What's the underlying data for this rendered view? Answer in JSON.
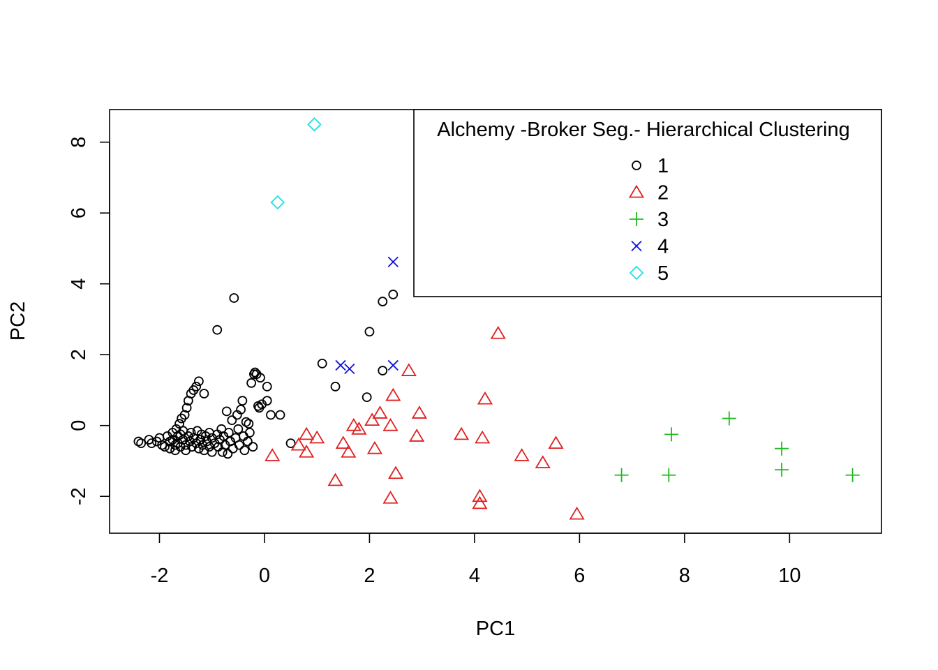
{
  "chart_data": {
    "type": "scatter",
    "xlabel": "PC1",
    "ylabel": "PC2",
    "xlim": [
      -2.95,
      11.75
    ],
    "ylim": [
      -3.04,
      8.92
    ],
    "xticks": [
      -2,
      0,
      2,
      4,
      6,
      8,
      10
    ],
    "yticks": [
      -2,
      0,
      2,
      4,
      6,
      8
    ],
    "xtick_labels": [
      "-2",
      "0",
      "2",
      "4",
      "6",
      "8",
      "10"
    ],
    "ytick_labels": [
      "-2",
      "0",
      "2",
      "4",
      "6",
      "8"
    ],
    "grid": false,
    "legend": {
      "title": "Alchemy -Broker Seg.- Hierarchical Clustering",
      "placement": "top-right"
    },
    "series": [
      {
        "name": "1",
        "marker": "circle",
        "color": "#000000",
        "points": [
          [
            -2.4,
            -0.45
          ],
          [
            -2.35,
            -0.5
          ],
          [
            -2.2,
            -0.4
          ],
          [
            -2.15,
            -0.5
          ],
          [
            -2.05,
            -0.45
          ],
          [
            -2.0,
            -0.35
          ],
          [
            -1.95,
            -0.55
          ],
          [
            -1.9,
            -0.6
          ],
          [
            -1.85,
            -0.3
          ],
          [
            -1.8,
            -0.45
          ],
          [
            -1.8,
            -0.65
          ],
          [
            -1.75,
            -0.2
          ],
          [
            -1.75,
            -0.4
          ],
          [
            -1.7,
            -0.55
          ],
          [
            -1.7,
            -0.7
          ],
          [
            -1.68,
            -0.1
          ],
          [
            -1.65,
            -0.3
          ],
          [
            -1.65,
            -0.5
          ],
          [
            -1.62,
            0.05
          ],
          [
            -1.6,
            -0.25
          ],
          [
            -1.6,
            -0.6
          ],
          [
            -1.58,
            0.2
          ],
          [
            -1.55,
            -0.4
          ],
          [
            -1.55,
            -0.15
          ],
          [
            -1.52,
            0.3
          ],
          [
            -1.5,
            -0.55
          ],
          [
            -1.5,
            -0.7
          ],
          [
            -1.48,
            0.5
          ],
          [
            -1.45,
            -0.3
          ],
          [
            -1.45,
            0.7
          ],
          [
            -1.42,
            -0.45
          ],
          [
            -1.4,
            0.9
          ],
          [
            -1.4,
            -0.2
          ],
          [
            -1.38,
            -0.6
          ],
          [
            -1.35,
            1.0
          ],
          [
            -1.35,
            -0.35
          ],
          [
            -1.3,
            -0.5
          ],
          [
            -1.3,
            1.1
          ],
          [
            -1.28,
            -0.15
          ],
          [
            -1.25,
            -0.65
          ],
          [
            -1.25,
            1.25
          ],
          [
            -1.22,
            -0.4
          ],
          [
            -1.2,
            -0.25
          ],
          [
            -1.18,
            -0.55
          ],
          [
            -1.15,
            -0.7
          ],
          [
            -1.15,
            0.9
          ],
          [
            -1.12,
            -0.3
          ],
          [
            -1.1,
            -0.45
          ],
          [
            -1.05,
            -0.6
          ],
          [
            -1.05,
            -0.2
          ],
          [
            -1.0,
            -0.75
          ],
          [
            -1.0,
            -0.35
          ],
          [
            -0.95,
            -0.5
          ],
          [
            -0.9,
            -0.25
          ],
          [
            -0.9,
            2.7
          ],
          [
            -0.88,
            -0.6
          ],
          [
            -0.85,
            -0.4
          ],
          [
            -0.82,
            -0.1
          ],
          [
            -0.8,
            -0.75
          ],
          [
            -0.78,
            -0.3
          ],
          [
            -0.75,
            -0.55
          ],
          [
            -0.72,
            0.4
          ],
          [
            -0.7,
            -0.8
          ],
          [
            -0.68,
            -0.2
          ],
          [
            -0.65,
            -0.45
          ],
          [
            -0.62,
            0.15
          ],
          [
            -0.6,
            -0.65
          ],
          [
            -0.58,
            3.6
          ],
          [
            -0.55,
            -0.35
          ],
          [
            -0.52,
            0.3
          ],
          [
            -0.5,
            -0.1
          ],
          [
            -0.48,
            -0.55
          ],
          [
            -0.45,
            0.45
          ],
          [
            -0.42,
            0.7
          ],
          [
            -0.4,
            -0.3
          ],
          [
            -0.38,
            -0.7
          ],
          [
            -0.35,
            0.1
          ],
          [
            -0.32,
            -0.45
          ],
          [
            -0.3,
            0.05
          ],
          [
            -0.28,
            -0.2
          ],
          [
            -0.25,
            1.2
          ],
          [
            -0.22,
            -0.6
          ],
          [
            -0.2,
            1.45
          ],
          [
            -0.18,
            1.5
          ],
          [
            -0.15,
            1.45
          ],
          [
            -0.12,
            0.55
          ],
          [
            -0.1,
            0.5
          ],
          [
            -0.08,
            1.35
          ],
          [
            -0.05,
            0.6
          ],
          [
            0.05,
            0.7
          ],
          [
            0.05,
            1.1
          ],
          [
            0.12,
            0.3
          ],
          [
            0.3,
            0.3
          ],
          [
            0.5,
            -0.5
          ],
          [
            1.1,
            1.75
          ],
          [
            1.35,
            1.1
          ],
          [
            1.95,
            0.8
          ],
          [
            2.0,
            2.65
          ],
          [
            2.25,
            1.55
          ],
          [
            2.25,
            3.5
          ],
          [
            2.45,
            3.7
          ]
        ]
      },
      {
        "name": "2",
        "marker": "triangle",
        "color": "#DF2020",
        "points": [
          [
            0.15,
            -0.85
          ],
          [
            0.65,
            -0.55
          ],
          [
            0.8,
            -0.25
          ],
          [
            0.8,
            -0.75
          ],
          [
            1.0,
            -0.35
          ],
          [
            1.35,
            -1.55
          ],
          [
            1.5,
            -0.5
          ],
          [
            1.6,
            -0.75
          ],
          [
            1.7,
            0.0
          ],
          [
            1.8,
            -0.1
          ],
          [
            2.05,
            0.15
          ],
          [
            2.1,
            -0.65
          ],
          [
            2.2,
            0.35
          ],
          [
            2.4,
            -2.05
          ],
          [
            2.4,
            0.0
          ],
          [
            2.45,
            0.85
          ],
          [
            2.5,
            -1.35
          ],
          [
            2.75,
            1.55
          ],
          [
            2.9,
            -0.3
          ],
          [
            2.95,
            0.35
          ],
          [
            3.75,
            -0.25
          ],
          [
            4.1,
            -2.0
          ],
          [
            4.1,
            -2.2
          ],
          [
            4.15,
            -0.35
          ],
          [
            4.2,
            0.75
          ],
          [
            4.45,
            2.6
          ],
          [
            4.9,
            -0.85
          ],
          [
            5.3,
            -1.05
          ],
          [
            5.55,
            -0.5
          ],
          [
            5.95,
            -2.5
          ]
        ]
      },
      {
        "name": "3",
        "marker": "plus",
        "color": "#20BB20",
        "points": [
          [
            6.8,
            -1.4
          ],
          [
            7.7,
            -1.4
          ],
          [
            7.75,
            -0.25
          ],
          [
            8.85,
            0.2
          ],
          [
            9.85,
            -0.65
          ],
          [
            9.85,
            -1.25
          ],
          [
            11.2,
            -1.4
          ]
        ]
      },
      {
        "name": "4",
        "marker": "x",
        "color": "#1010DD",
        "points": [
          [
            1.45,
            1.7
          ],
          [
            1.62,
            1.6
          ],
          [
            2.45,
            1.7
          ],
          [
            2.45,
            4.62
          ]
        ]
      },
      {
        "name": "5",
        "marker": "diamond",
        "color": "#20E0E0",
        "points": [
          [
            0.25,
            6.3
          ],
          [
            0.95,
            8.5
          ]
        ]
      }
    ]
  }
}
